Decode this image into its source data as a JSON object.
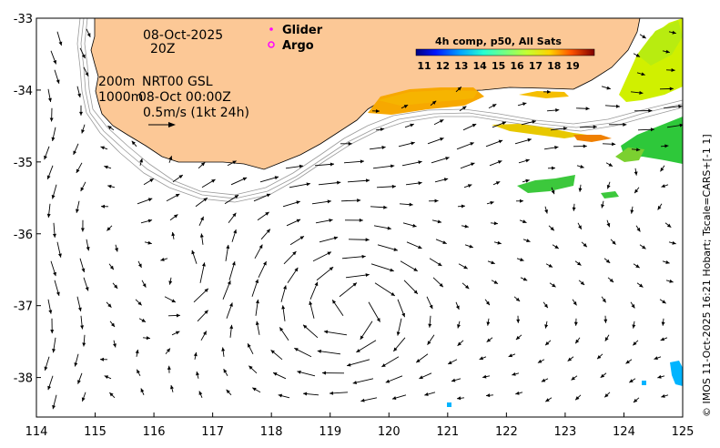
{
  "map": {
    "lon_ticks": [
      "114",
      "115",
      "116",
      "117",
      "118",
      "119",
      "120",
      "121",
      "122",
      "123",
      "124",
      "125"
    ],
    "lat_ticks": [
      "-33",
      "-34",
      "-35",
      "-36",
      "-37",
      "-38"
    ],
    "lon_range": [
      114,
      125
    ],
    "lat_range": [
      -38.55,
      -33
    ],
    "land_color": "#fcc896",
    "isobath_color": "#9a9a9a",
    "arrow_color": "#000000"
  },
  "annotations": {
    "date": "08-Oct-2025",
    "time": "20Z",
    "isobath_200": "200m",
    "isobath_1000": "1000m",
    "product": "NRT00 GSL",
    "product_time": "08-Oct 00:00Z",
    "scale_label": "0.5m/s (1kt 24h)"
  },
  "legend": {
    "glider_label": "Glider",
    "argo_label": "Argo",
    "glider_color": "#ff00ff",
    "argo_color": "#ff00ff"
  },
  "colorbar": {
    "title": "4h comp, p50, All Sats",
    "ticks": [
      "11",
      "12",
      "13",
      "14",
      "15",
      "16",
      "17",
      "18",
      "19"
    ],
    "colors": [
      "#00007f",
      "#0016ff",
      "#00a4ff",
      "#27ffd0",
      "#75ff81",
      "#c4ff32",
      "#ffd200",
      "#ff5200",
      "#c10000",
      "#7f0000"
    ]
  },
  "credit": "© IMOS 11-Oct-2025 16:21 Hobart; Tscale=CARS+[-1 1]"
}
